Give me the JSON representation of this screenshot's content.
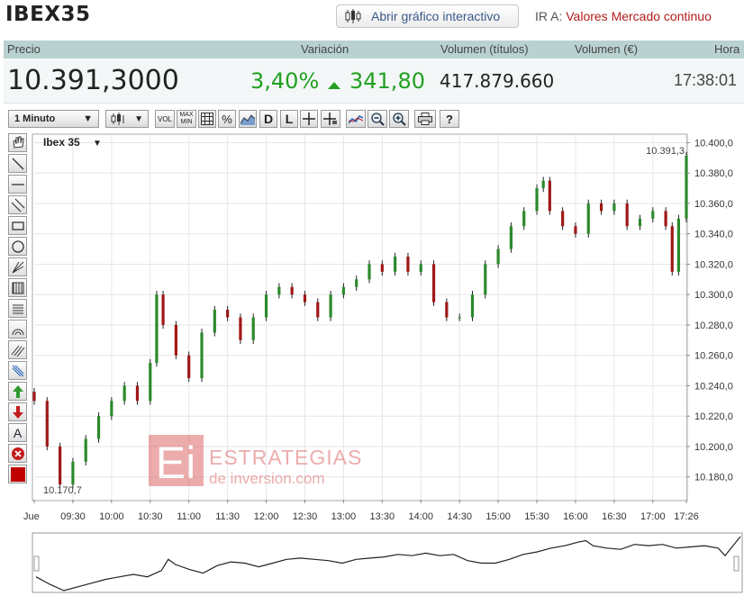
{
  "page": {
    "title": "IBEX35",
    "open_chart_button": "Abrir gráfico interactivo",
    "ir_a_label": "IR A:",
    "ir_a_link": "Valores Mercado continuo"
  },
  "header": {
    "precio": "Precio",
    "variacion": "Variación",
    "volumen_titulos": "Volumen (títulos)",
    "volumen_euros": "Volumen (€)",
    "hora": "Hora"
  },
  "quote": {
    "price": "10.391,3000",
    "change_pct": "3,40%",
    "change_pts": "341,80",
    "volume_titulos": "417.879.660",
    "volume_euros": "",
    "time": "17:38:01",
    "up_color": "#22a022"
  },
  "toolbar": {
    "interval": "1 Minuto",
    "vol": "VOL",
    "maxmin_top": "MAX",
    "maxmin_bottom": "MIN",
    "pct": "%",
    "d": "D",
    "l": "L",
    "help": "?"
  },
  "sidebar_tools": [
    "hand-icon",
    "line-icon",
    "horizontal-line-icon",
    "channel-icon",
    "rectangle-icon",
    "circle-icon",
    "fan-icon",
    "vertical-lines-icon",
    "horizontal-lines-icon",
    "arc-icon",
    "parallel-lines-icon",
    "gann-icon",
    "arrow-up-icon",
    "arrow-down-icon",
    "text-icon",
    "delete-icon",
    "color-picker-icon"
  ],
  "sidebar_text_tool": "A",
  "watermark": {
    "logo": "Ei",
    "line1": "ESTRATEGIAS",
    "line2": "de inversion.com"
  },
  "chart_data": {
    "type": "candlestick",
    "title": "Ibex 35",
    "x": [
      "09:00",
      "09:10",
      "09:20",
      "09:30",
      "09:40",
      "09:50",
      "10:00",
      "10:10",
      "10:20",
      "10:30",
      "10:35",
      "10:40",
      "10:50",
      "11:00",
      "11:10",
      "11:20",
      "11:30",
      "11:40",
      "11:50",
      "12:00",
      "12:10",
      "12:20",
      "12:30",
      "12:40",
      "12:50",
      "13:00",
      "13:10",
      "13:20",
      "13:30",
      "13:40",
      "13:50",
      "14:00",
      "14:10",
      "14:20",
      "14:30",
      "14:40",
      "14:50",
      "15:00",
      "15:10",
      "15:20",
      "15:30",
      "15:35",
      "15:40",
      "15:50",
      "16:00",
      "16:10",
      "16:20",
      "16:30",
      "16:40",
      "16:50",
      "17:00",
      "17:10",
      "17:15",
      "17:20",
      "17:26"
    ],
    "y": [
      10230,
      10200,
      10175,
      10190,
      10205,
      10220,
      10230,
      10240,
      10230,
      10255,
      10300,
      10280,
      10260,
      10245,
      10275,
      10290,
      10285,
      10270,
      10285,
      10300,
      10305,
      10300,
      10295,
      10285,
      10300,
      10305,
      10310,
      10320,
      10315,
      10325,
      10315,
      10320,
      10295,
      10285,
      10285,
      10300,
      10320,
      10330,
      10345,
      10355,
      10370,
      10375,
      10355,
      10345,
      10340,
      10360,
      10355,
      10360,
      10345,
      10350,
      10355,
      10345,
      10315,
      10350,
      10391.3
    ],
    "y_ticks": [
      "10.400,0",
      "10.380,0",
      "10.360,0",
      "10.340,0",
      "10.320,0",
      "10.300,0",
      "10.280,0",
      "10.260,0",
      "10.240,0",
      "10.220,0",
      "10.200,0",
      "10.180,0"
    ],
    "x_ticks": [
      "Jue",
      "09:30",
      "10:00",
      "10:30",
      "11:00",
      "11:30",
      "12:00",
      "12:30",
      "13:00",
      "13:30",
      "14:00",
      "14:30",
      "15:00",
      "15:30",
      "16:00",
      "16:30",
      "17:00",
      "17:26"
    ],
    "last_label": "10.391,3",
    "min_label": "10.170,7",
    "ylim": [
      10165,
      10405
    ],
    "grid": true,
    "up_color": "#2c8a2c",
    "down_color": "#a01818"
  }
}
